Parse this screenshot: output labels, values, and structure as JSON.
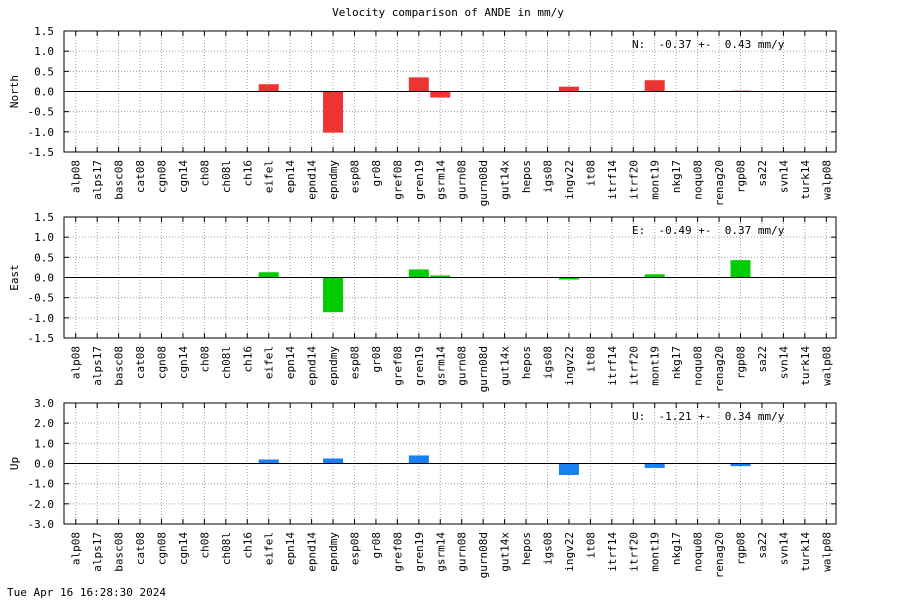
{
  "title": "Velocity comparison of ANDE in mm/y",
  "footer": "Tue Apr 16 16:28:30 2024",
  "chart_data": [
    {
      "type": "bar",
      "ylabel": "North",
      "annotation": "N:  -0.37 +-  0.43 mm/y",
      "color": "#ee3333",
      "ylim": [
        -1.5,
        1.5
      ],
      "yticks": [
        -1.5,
        -1.0,
        -0.5,
        0.0,
        0.5,
        1.0,
        1.5
      ],
      "ytick_labels": [
        "-1.5",
        "-1.0",
        "-0.5",
        "0.0",
        "0.5",
        "1.0",
        "1.5"
      ],
      "categories": [
        "alp08",
        "alps17",
        "basc08",
        "cat08",
        "cgn08",
        "cgn14",
        "ch08",
        "ch08l",
        "ch16",
        "eifel",
        "epn14",
        "epnd14",
        "epndmy",
        "esp08",
        "gr08",
        "gref08",
        "gren19",
        "gsrm14",
        "gurn08",
        "gurn08d",
        "gut14x",
        "hepos",
        "igs08",
        "ingv22",
        "it08",
        "itrf14",
        "itrf20",
        "mont19",
        "nkg17",
        "noqu08",
        "renag20",
        "rgp08",
        "sa22",
        "svn14",
        "turk14",
        "walp08"
      ],
      "values": [
        0,
        0,
        0,
        0,
        0,
        0,
        0,
        0,
        0,
        0.18,
        0,
        0,
        -1.02,
        0,
        0,
        0,
        0.35,
        -0.15,
        0,
        0,
        0,
        0,
        0,
        0.12,
        0,
        0,
        0,
        0.28,
        0,
        0,
        0,
        0.02,
        0,
        0,
        0,
        0
      ]
    },
    {
      "type": "bar",
      "ylabel": "East",
      "annotation": "E:  -0.49 +-  0.37 mm/y",
      "color": "#00cc00",
      "ylim": [
        -1.5,
        1.5
      ],
      "yticks": [
        -1.5,
        -1.0,
        -0.5,
        0.0,
        0.5,
        1.0,
        1.5
      ],
      "ytick_labels": [
        "-1.5",
        "-1.0",
        "-0.5",
        "0.0",
        "0.5",
        "1.0",
        "1.5"
      ],
      "categories": [
        "alp08",
        "alps17",
        "basc08",
        "cat08",
        "cgn08",
        "cgn14",
        "ch08",
        "ch08l",
        "ch16",
        "eifel",
        "epn14",
        "epnd14",
        "epndmy",
        "esp08",
        "gr08",
        "gref08",
        "gren19",
        "gsrm14",
        "gurn08",
        "gurn08d",
        "gut14x",
        "hepos",
        "igs08",
        "ingv22",
        "it08",
        "itrf14",
        "itrf20",
        "mont19",
        "nkg17",
        "noqu08",
        "renag20",
        "rgp08",
        "sa22",
        "svn14",
        "turk14",
        "walp08"
      ],
      "values": [
        0,
        0,
        0,
        0,
        0,
        0,
        0,
        0,
        0,
        0.13,
        0,
        0,
        -0.86,
        0,
        0,
        0,
        0.2,
        0.05,
        0,
        0,
        0,
        0,
        0,
        -0.05,
        0,
        0,
        0,
        0.08,
        0,
        0,
        0,
        0.43,
        0,
        0,
        0,
        0
      ]
    },
    {
      "type": "bar",
      "ylabel": "Up",
      "annotation": "U:  -1.21 +-  0.34 mm/y",
      "color": "#1a7ff0",
      "ylim": [
        -3.0,
        3.0
      ],
      "yticks": [
        -3.0,
        -2.0,
        -1.0,
        0.0,
        1.0,
        2.0,
        3.0
      ],
      "ytick_labels": [
        "-3.0",
        "-2.0",
        "-1.0",
        "0.0",
        "1.0",
        "2.0",
        "3.0"
      ],
      "categories": [
        "alp08",
        "alps17",
        "basc08",
        "cat08",
        "cgn08",
        "cgn14",
        "ch08",
        "ch08l",
        "ch16",
        "eifel",
        "epn14",
        "epnd14",
        "epndmy",
        "esp08",
        "gr08",
        "gref08",
        "gren19",
        "gsrm14",
        "gurn08",
        "gurn08d",
        "gut14x",
        "hepos",
        "igs08",
        "ingv22",
        "it08",
        "itrf14",
        "itrf20",
        "mont19",
        "nkg17",
        "noqu08",
        "renag20",
        "rgp08",
        "sa22",
        "svn14",
        "turk14",
        "walp08"
      ],
      "values": [
        0,
        0,
        0,
        0,
        0,
        0,
        0,
        0,
        0,
        0.2,
        0,
        0,
        0.25,
        0,
        0,
        0,
        0.4,
        0,
        0,
        0,
        0,
        0,
        0,
        -0.57,
        0,
        0,
        0,
        -0.22,
        0,
        0,
        0,
        -0.13,
        0,
        0,
        0,
        0
      ]
    }
  ]
}
